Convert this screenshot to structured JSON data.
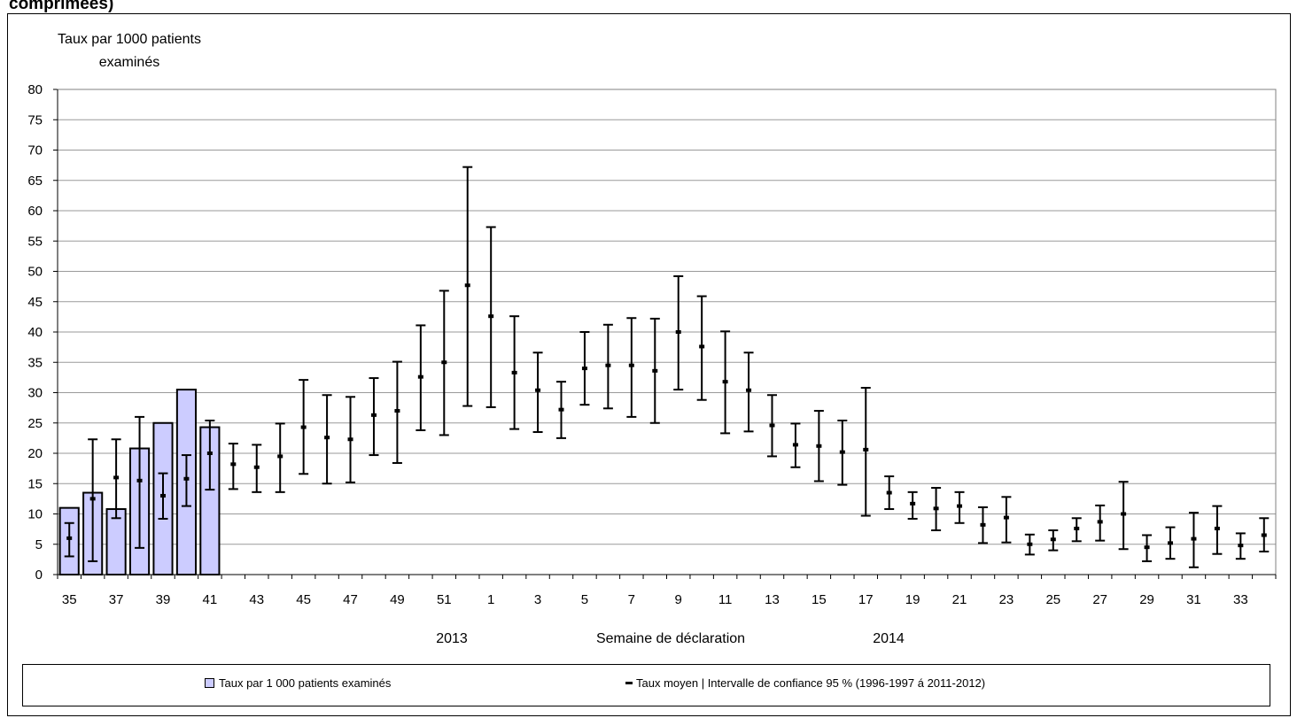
{
  "page": {
    "title_fragment": "comprimées)"
  },
  "chart_data": {
    "type": "bar",
    "ylabel_line1": "Taux par 1000 patients",
    "ylabel_line2": "examinés",
    "xlabel": "Semaine de déclaration",
    "year_labels": [
      "2013",
      "2014"
    ],
    "ylim": [
      0,
      80
    ],
    "yticks": [
      0,
      5,
      10,
      15,
      20,
      25,
      30,
      35,
      40,
      45,
      50,
      55,
      60,
      65,
      70,
      75,
      80
    ],
    "grid": true,
    "legend_position": "bottom",
    "weeks": [
      35,
      36,
      37,
      38,
      39,
      40,
      41,
      42,
      43,
      44,
      45,
      46,
      47,
      48,
      49,
      50,
      51,
      52,
      1,
      2,
      3,
      4,
      5,
      6,
      7,
      8,
      9,
      10,
      11,
      12,
      13,
      14,
      15,
      16,
      17,
      18,
      19,
      20,
      21,
      22,
      23,
      24,
      25,
      26,
      27,
      28,
      29,
      30,
      31,
      32,
      33,
      34
    ],
    "xtick_labels": [
      "35",
      "37",
      "39",
      "41",
      "43",
      "45",
      "47",
      "49",
      "51",
      "1",
      "3",
      "5",
      "7",
      "9",
      "11",
      "13",
      "15",
      "17",
      "19",
      "21",
      "23",
      "25",
      "27",
      "29",
      "31",
      "33"
    ],
    "series": [
      {
        "name": "Taux par 1 000 patients examinés",
        "kind": "bar",
        "color": "#ccccff",
        "values": [
          11,
          13.5,
          10.8,
          20.8,
          25,
          30.5,
          24.3
        ]
      },
      {
        "name": "Taux moyen | Intervalle de confiance 95 % (1996-1997 á 2011-2012)",
        "kind": "errorbar",
        "color": "#000000",
        "mean": [
          6,
          12.5,
          16,
          15.5,
          13,
          15.8,
          20,
          18.2,
          17.7,
          19.5,
          24.3,
          22.6,
          22.3,
          26.3,
          27,
          32.6,
          35,
          47.7,
          42.6,
          33.3,
          30.4,
          27.2,
          34,
          34.5,
          34.5,
          33.6,
          40,
          37.6,
          31.8,
          30.4,
          24.6,
          21.4,
          21.2,
          20.2,
          20.6,
          13.5,
          11.7,
          10.9,
          11.3,
          8.2,
          9.4,
          5,
          5.8,
          7.6,
          8.7,
          10,
          4.5,
          5.2,
          5.9,
          7.6,
          4.8,
          6.5
        ],
        "low": [
          3,
          2.2,
          9.3,
          4.4,
          9.2,
          11.3,
          14,
          14.1,
          13.6,
          13.6,
          16.6,
          15,
          15.2,
          19.7,
          18.4,
          23.8,
          23,
          27.8,
          27.6,
          24,
          23.5,
          22.5,
          28,
          27.4,
          26,
          25,
          30.5,
          28.8,
          23.3,
          23.6,
          19.5,
          17.7,
          15.4,
          14.8,
          9.7,
          10.8,
          9.2,
          7.3,
          8.5,
          5.2,
          5.3,
          3.3,
          4,
          5.5,
          5.6,
          4.2,
          2.2,
          2.6,
          1.2,
          3.4,
          2.6,
          3.8
        ],
        "high": [
          8.5,
          22.3,
          22.3,
          26,
          16.7,
          19.7,
          25.4,
          21.6,
          21.4,
          24.9,
          32.1,
          29.6,
          29.3,
          32.4,
          35.1,
          41.1,
          46.8,
          67.2,
          57.3,
          42.6,
          36.6,
          31.8,
          40,
          41.2,
          42.3,
          42.2,
          49.2,
          45.9,
          40.1,
          36.6,
          29.6,
          24.9,
          27,
          25.4,
          30.8,
          16.2,
          13.6,
          14.3,
          13.6,
          11.1,
          12.8,
          6.6,
          7.3,
          9.3,
          11.4,
          15.3,
          6.5,
          7.8,
          10.2,
          11.3,
          6.8,
          9.3
        ]
      }
    ]
  }
}
